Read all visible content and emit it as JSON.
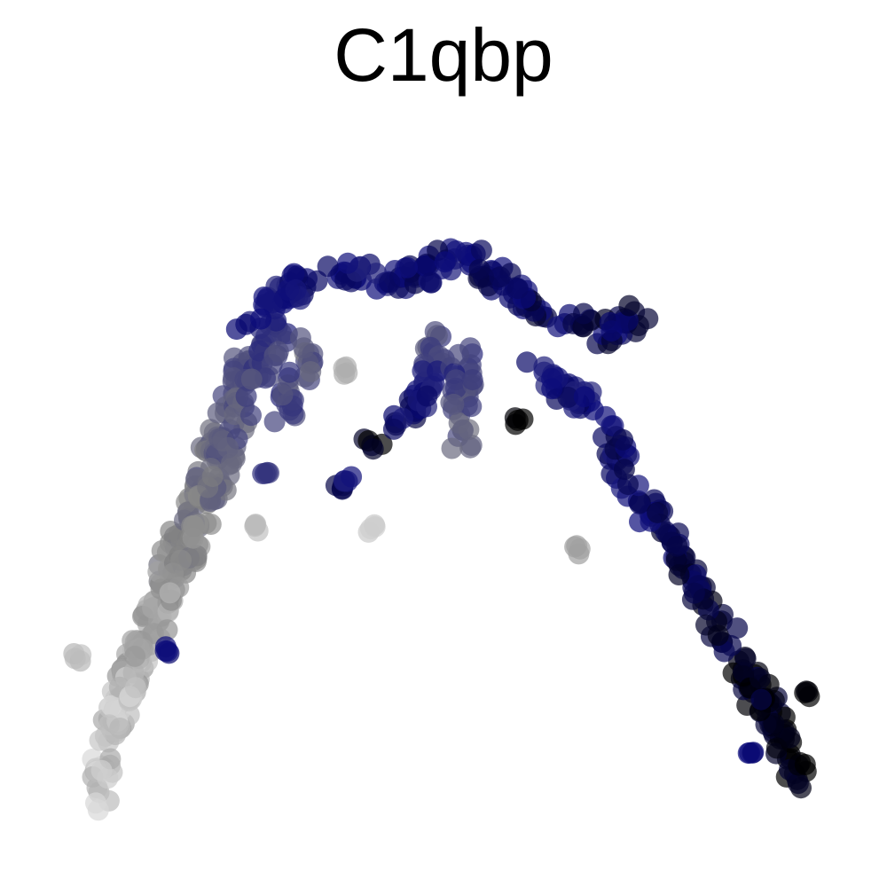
{
  "chart_data": {
    "type": "scatter",
    "title": "C1qbp",
    "xlabel": "",
    "ylabel": "",
    "axes_visible": false,
    "grid": false,
    "legend": "none",
    "color_scale": {
      "low": "#d9d9d9",
      "mid": "#808080",
      "high_blue": "#0a0a7a",
      "max": "#000000",
      "marker_opacity": 0.7
    },
    "xlim": [
      0,
      1
    ],
    "ylim": [
      0,
      1
    ],
    "trajectories": [
      {
        "id": "far-left-stem",
        "expr_start": 0.02,
        "expr_end": 0.5,
        "points": [
          [
            0.08,
            0.05
          ],
          [
            0.08,
            0.12
          ],
          [
            0.1,
            0.19
          ],
          [
            0.12,
            0.26
          ],
          [
            0.14,
            0.33
          ],
          [
            0.17,
            0.42
          ],
          [
            0.2,
            0.5
          ],
          [
            0.23,
            0.6
          ],
          [
            0.26,
            0.7
          ]
        ]
      },
      {
        "id": "left-arm",
        "expr_start": 0.05,
        "expr_end": 0.6,
        "points": [
          [
            0.1,
            0.18
          ],
          [
            0.12,
            0.25
          ],
          [
            0.14,
            0.3
          ],
          [
            0.16,
            0.36
          ],
          [
            0.19,
            0.42
          ],
          [
            0.21,
            0.48
          ],
          [
            0.24,
            0.58
          ],
          [
            0.27,
            0.66
          ],
          [
            0.3,
            0.74
          ]
        ]
      },
      {
        "id": "top-arch",
        "expr_start": 0.7,
        "expr_end": 0.85,
        "points": [
          [
            0.25,
            0.72
          ],
          [
            0.29,
            0.77
          ],
          [
            0.34,
            0.8
          ],
          [
            0.39,
            0.81
          ],
          [
            0.44,
            0.79
          ],
          [
            0.48,
            0.81
          ],
          [
            0.52,
            0.83
          ],
          [
            0.56,
            0.8
          ],
          [
            0.6,
            0.77
          ],
          [
            0.65,
            0.74
          ],
          [
            0.7,
            0.72
          ],
          [
            0.74,
            0.75
          ]
        ]
      },
      {
        "id": "right-arm",
        "expr_start": 0.7,
        "expr_end": 1.0,
        "points": [
          [
            0.61,
            0.69
          ],
          [
            0.64,
            0.65
          ],
          [
            0.67,
            0.62
          ],
          [
            0.7,
            0.58
          ],
          [
            0.72,
            0.52
          ],
          [
            0.75,
            0.47
          ],
          [
            0.78,
            0.42
          ],
          [
            0.81,
            0.36
          ],
          [
            0.84,
            0.3
          ],
          [
            0.87,
            0.24
          ],
          [
            0.9,
            0.18
          ],
          [
            0.92,
            0.13
          ],
          [
            0.94,
            0.09
          ]
        ]
      },
      {
        "id": "inner-branch-a",
        "expr_start": 0.4,
        "expr_end": 0.6,
        "points": [
          [
            0.33,
            0.71
          ],
          [
            0.32,
            0.66
          ],
          [
            0.3,
            0.61
          ]
        ]
      },
      {
        "id": "inner-branch-b",
        "expr_start": 0.5,
        "expr_end": 0.95,
        "points": [
          [
            0.49,
            0.72
          ],
          [
            0.48,
            0.66
          ],
          [
            0.46,
            0.61
          ],
          [
            0.43,
            0.6
          ],
          [
            0.41,
            0.57
          ]
        ]
      },
      {
        "id": "inner-branch-c",
        "expr_start": 0.6,
        "expr_end": 0.4,
        "points": [
          [
            0.52,
            0.69
          ],
          [
            0.52,
            0.63
          ],
          [
            0.52,
            0.56
          ]
        ]
      }
    ],
    "isolated_points": [
      {
        "x": 0.28,
        "y": 0.53,
        "expr": 0.6
      },
      {
        "x": 0.37,
        "y": 0.51,
        "expr": 0.85
      },
      {
        "x": 0.38,
        "y": 0.52,
        "expr": 0.7
      },
      {
        "x": 0.27,
        "y": 0.45,
        "expr": 0.1
      },
      {
        "x": 0.41,
        "y": 0.45,
        "expr": 0.05
      },
      {
        "x": 0.38,
        "y": 0.67,
        "expr": 0.15
      },
      {
        "x": 0.59,
        "y": 0.6,
        "expr": 1.0
      },
      {
        "x": 0.66,
        "y": 0.42,
        "expr": 0.2
      },
      {
        "x": 0.87,
        "y": 0.14,
        "expr": 0.75
      },
      {
        "x": 0.94,
        "y": 0.22,
        "expr": 1.0
      },
      {
        "x": 0.16,
        "y": 0.28,
        "expr": 0.75
      },
      {
        "x": 0.05,
        "y": 0.27,
        "expr": 0.1
      }
    ]
  }
}
